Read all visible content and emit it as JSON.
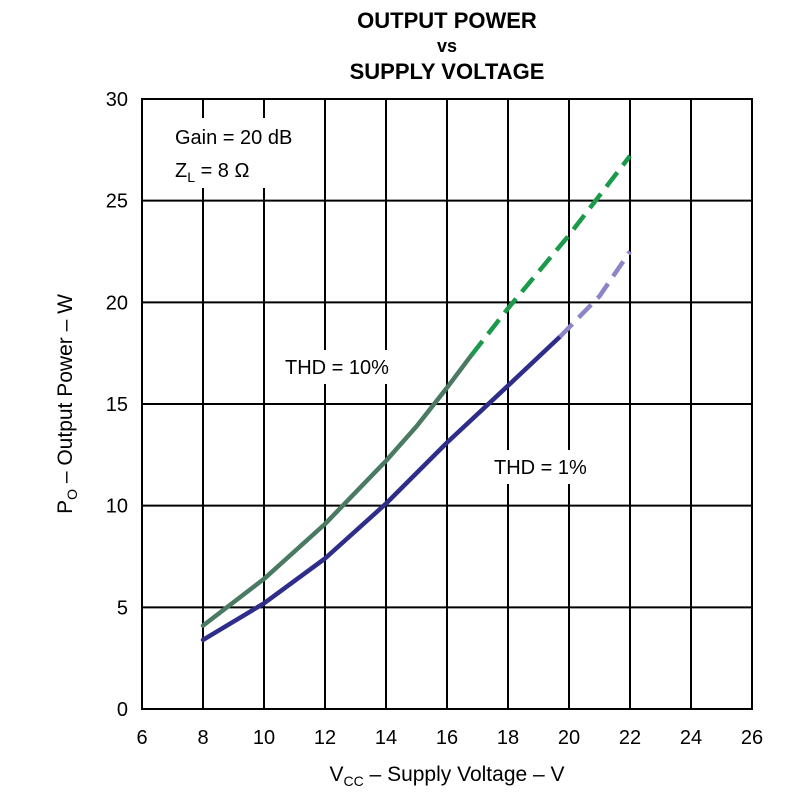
{
  "chart_data": {
    "type": "line",
    "title_lines": [
      "OUTPUT POWER",
      "vs",
      "SUPPLY VOLTAGE"
    ],
    "xlabel": {
      "main": "V",
      "sub": "CC",
      "rest": " – Supply Voltage – V"
    },
    "ylabel": {
      "main": "P",
      "sub": "O",
      "rest": " – Output Power – W"
    },
    "xlim": [
      6,
      26
    ],
    "ylim": [
      0,
      30
    ],
    "xticks": [
      "6",
      "8",
      "10",
      "12",
      "14",
      "16",
      "18",
      "20",
      "22",
      "24",
      "26"
    ],
    "yticks": [
      "0",
      "5",
      "10",
      "15",
      "20",
      "25",
      "30"
    ],
    "grid": true,
    "conditions": {
      "gain": "Gain = 20 dB",
      "load": {
        "main": "Z",
        "sub": "L",
        "rest": " = 8 Ω"
      }
    },
    "series": [
      {
        "name": "THD = 10%",
        "label": "THD = 10%",
        "color": "#4a7a62",
        "dashed_color": "#1a9a4a",
        "solid": [
          [
            8,
            4.1
          ],
          [
            10,
            6.4
          ],
          [
            12,
            9.1
          ],
          [
            14,
            12.2
          ],
          [
            15,
            13.9
          ],
          [
            16,
            15.8
          ],
          [
            16.8,
            17.4
          ]
        ],
        "dashed": [
          [
            16.8,
            17.4
          ],
          [
            18,
            19.7
          ],
          [
            20,
            23.3
          ],
          [
            22,
            27.2
          ]
        ]
      },
      {
        "name": "THD = 1%",
        "label": "THD = 1%",
        "color": "#2e2e8a",
        "dashed_color": "#8c84c8",
        "solid": [
          [
            8,
            3.4
          ],
          [
            10,
            5.2
          ],
          [
            12,
            7.4
          ],
          [
            14,
            10.1
          ],
          [
            16,
            13.1
          ],
          [
            18,
            15.9
          ],
          [
            19.7,
            18.3
          ]
        ],
        "dashed": [
          [
            19.7,
            18.3
          ],
          [
            21,
            20.3
          ],
          [
            22,
            22.5
          ]
        ]
      }
    ]
  }
}
